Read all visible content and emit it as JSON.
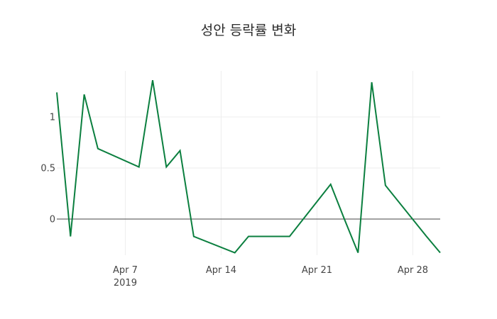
{
  "chart_data": {
    "type": "line",
    "title": "성안 등락률 변화",
    "xlabel": "",
    "ylabel": "",
    "x": [
      "2019-04-02",
      "2019-04-03",
      "2019-04-04",
      "2019-04-05",
      "2019-04-08",
      "2019-04-09",
      "2019-04-10",
      "2019-04-11",
      "2019-04-12",
      "2019-04-15",
      "2019-04-16",
      "2019-04-17",
      "2019-04-18",
      "2019-04-19",
      "2019-04-22",
      "2019-04-23",
      "2019-04-24",
      "2019-04-25",
      "2019-04-26",
      "2019-04-29",
      "2019-04-30"
    ],
    "series": [
      {
        "name": "등락률",
        "color": "#0b7f3f",
        "values": [
          1.24,
          -0.17,
          1.22,
          0.69,
          0.51,
          1.36,
          0.51,
          0.67,
          -0.17,
          -0.33,
          -0.17,
          -0.17,
          -0.17,
          -0.17,
          0.34,
          0.0,
          -0.33,
          1.34,
          0.33,
          -0.17,
          -0.33
        ]
      }
    ],
    "xlim": [
      "2019-04-02",
      "2019-04-30"
    ],
    "ylim": [
      -0.354,
      1.451
    ],
    "x_ticks": [
      {
        "date": "2019-04-07",
        "label": "Apr 7",
        "sublabel": "2019"
      },
      {
        "date": "2019-04-14",
        "label": "Apr 14",
        "sublabel": ""
      },
      {
        "date": "2019-04-21",
        "label": "Apr 21",
        "sublabel": ""
      },
      {
        "date": "2019-04-28",
        "label": "Apr 28",
        "sublabel": ""
      }
    ],
    "y_ticks": [
      {
        "value": 0,
        "label": "0"
      },
      {
        "value": 0.5,
        "label": "0.5"
      },
      {
        "value": 1,
        "label": "1"
      }
    ],
    "grid": true,
    "zeroline": true,
    "legend": "none"
  }
}
